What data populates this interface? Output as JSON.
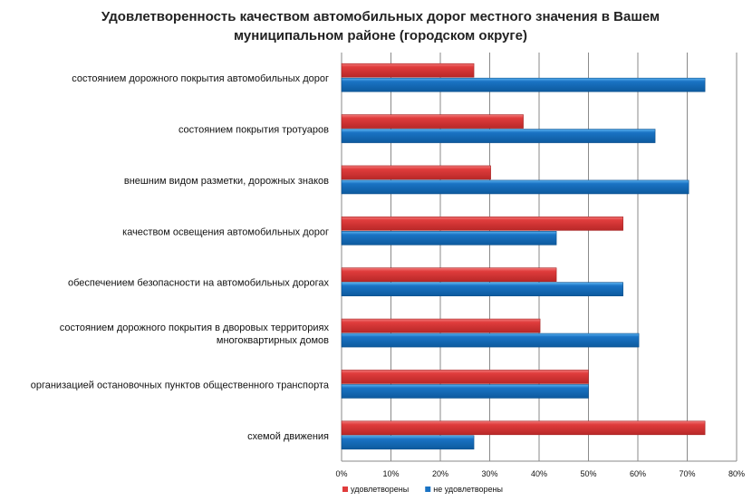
{
  "chart_data": {
    "type": "bar",
    "orientation": "horizontal",
    "title": "Удовлетворенность качеством автомобильных дорог местного значения  в Вашем муниципальном районе (городском округе)",
    "title_lines": [
      "Удовлетворенность качеством автомобильных дорог местного значения  в Вашем",
      "муниципальном районе (городском округе)"
    ],
    "categories": [
      [
        "состоянием дорожного покрытия автомобильных дорог"
      ],
      [
        "состоянием покрытия тротуаров"
      ],
      [
        "внешним  видом разметки, дорожных знаков"
      ],
      [
        "качеством освещения автомобильных дорог"
      ],
      [
        "обеспечением  безопасности на автомобильных дорогах"
      ],
      [
        "состоянием дорожного покрытия в дворовых территориях",
        "многоквартирных домов"
      ],
      [
        "организацией остановочных пунктов общественного транспорта"
      ],
      [
        "схемой движения"
      ]
    ],
    "series": [
      {
        "name": "удовлетворены",
        "color": "#e03c3c",
        "values": [
          26.8,
          36.8,
          30.2,
          57.0,
          43.5,
          40.2,
          50.0,
          73.6
        ]
      },
      {
        "name": "не удовлетворены",
        "color": "#1a73c4",
        "values": [
          73.6,
          63.5,
          70.3,
          43.5,
          57.0,
          60.2,
          50.0,
          26.8
        ]
      }
    ],
    "xlim": [
      0,
      80
    ],
    "xticks": [
      "0%",
      "10%",
      "20%",
      "30%",
      "40%",
      "50%",
      "60%",
      "70%",
      "80%"
    ],
    "xlabel": "",
    "ylabel": "",
    "grid": true,
    "legend": "bottom"
  }
}
